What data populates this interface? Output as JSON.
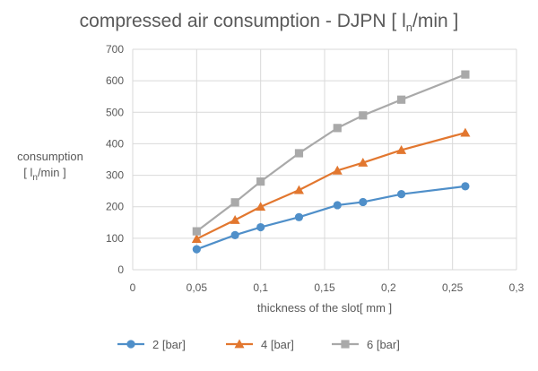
{
  "chart_data": {
    "type": "line",
    "title_prefix": "compressed air consumption - DJPN [ l",
    "title_sub": "n",
    "title_suffix": "/min ]",
    "xlabel": "thickness of the slot[ mm ]",
    "ylabel_line1": "consumption",
    "ylabel_line2_prefix": "[ l",
    "ylabel_line2_sub": "n",
    "ylabel_line2_suffix": "/min ]",
    "x": [
      0.05,
      0.08,
      0.1,
      0.13,
      0.16,
      0.18,
      0.21,
      0.26
    ],
    "xlim": [
      0,
      0.3
    ],
    "ylim": [
      0,
      700
    ],
    "x_ticks": [
      "0",
      "0,05",
      "0,1",
      "0,15",
      "0,2",
      "0,25",
      "0,3"
    ],
    "y_ticks": [
      "0",
      "100",
      "200",
      "300",
      "400",
      "500",
      "600",
      "700"
    ],
    "grid": "both",
    "legend_position": "bottom",
    "series": [
      {
        "name": "2 [bar]",
        "color": "#4f8fc9",
        "marker": "circle",
        "values": [
          65,
          110,
          135,
          167,
          205,
          215,
          240,
          265
        ]
      },
      {
        "name": "4 [bar]",
        "color": "#e2772f",
        "marker": "triangle",
        "values": [
          98,
          158,
          200,
          253,
          315,
          340,
          380,
          435
        ]
      },
      {
        "name": "6 [bar]",
        "color": "#a9a9a9",
        "marker": "square",
        "values": [
          122,
          214,
          280,
          370,
          450,
          490,
          540,
          620
        ]
      }
    ]
  }
}
